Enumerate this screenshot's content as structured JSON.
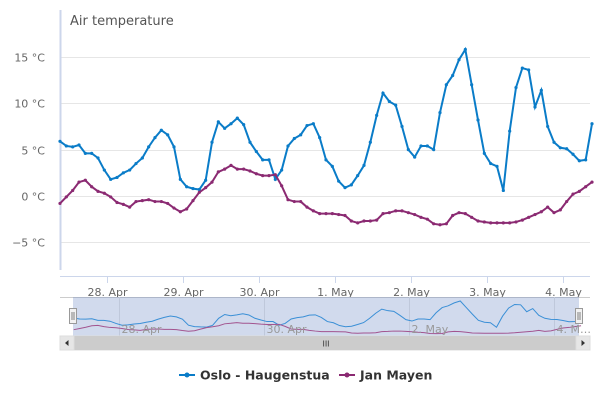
{
  "chart_data": {
    "type": "line",
    "title": "Air temperature",
    "y_unit": "°C",
    "ylim": [
      -5.5,
      19
    ],
    "y_ticks": [
      -5,
      0,
      5,
      10,
      15
    ],
    "y_tick_labels": [
      "−5 °C",
      "0 °C",
      "5 °C",
      "10 °C",
      "15 °C"
    ],
    "x_tick_labels": [
      "28. Apr",
      "29. Apr",
      "30. Apr",
      "1. May",
      "2. May",
      "3. May",
      "4. May"
    ],
    "navigator_tick_labels": [
      "28. Apr",
      "30. Apr",
      "2. May",
      "4. M…"
    ],
    "grid": true,
    "legend_placement": "bottom",
    "point_start": "27 Apr 09:00",
    "point_interval_hours": 2,
    "series": [
      {
        "name": "Oslo - Haugenstua",
        "color": "#0a7cc8",
        "values": [
          5.9,
          5.4,
          5.3,
          5.5,
          4.6,
          4.6,
          4.1,
          2.8,
          1.8,
          2.0,
          2.5,
          2.8,
          3.5,
          4.1,
          5.3,
          6.3,
          7.1,
          6.6,
          5.3,
          1.8,
          1.0,
          0.8,
          0.7,
          1.7,
          5.8,
          8.0,
          7.3,
          7.8,
          8.4,
          7.7,
          5.8,
          4.8,
          3.9,
          3.9,
          1.8,
          2.8,
          5.4,
          6.2,
          6.6,
          7.6,
          7.8,
          6.3,
          3.9,
          3.2,
          1.6,
          0.9,
          1.2,
          2.2,
          3.3,
          5.8,
          8.7,
          11.1,
          10.2,
          9.8,
          7.5,
          5.0,
          4.2,
          5.4,
          5.4,
          5.0,
          9.0,
          12.0,
          13.0,
          14.7,
          15.8,
          12.0,
          8.2,
          4.6,
          3.5,
          3.2,
          0.6,
          7.0,
          11.7,
          13.8,
          13.6,
          9.6,
          11.4,
          7.5,
          5.8,
          5.2,
          5.1,
          4.5,
          3.8,
          3.9,
          7.8
        ]
      },
      {
        "name": "Jan Mayen",
        "color": "#8b2a72",
        "values": [
          -0.8,
          -0.1,
          0.6,
          1.5,
          1.7,
          1.0,
          0.5,
          0.3,
          -0.1,
          -0.7,
          -0.9,
          -1.2,
          -0.6,
          -0.5,
          -0.4,
          -0.6,
          -0.6,
          -0.8,
          -1.3,
          -1.7,
          -1.4,
          -0.5,
          0.4,
          0.9,
          1.5,
          2.6,
          2.9,
          3.3,
          2.9,
          2.9,
          2.7,
          2.4,
          2.2,
          2.2,
          2.3,
          1.1,
          -0.4,
          -0.6,
          -0.6,
          -1.2,
          -1.6,
          -1.9,
          -1.9,
          -1.9,
          -2.0,
          -2.1,
          -2.7,
          -2.9,
          -2.7,
          -2.7,
          -2.6,
          -1.9,
          -1.8,
          -1.6,
          -1.6,
          -1.8,
          -2.0,
          -2.3,
          -2.5,
          -3.0,
          -3.1,
          -3.0,
          -2.1,
          -1.8,
          -1.9,
          -2.3,
          -2.7,
          -2.8,
          -2.9,
          -2.9,
          -2.9,
          -2.9,
          -2.8,
          -2.6,
          -2.3,
          -2.0,
          -1.7,
          -1.2,
          -1.8,
          -1.5,
          -0.6,
          0.2,
          0.5,
          1.0,
          1.5
        ]
      }
    ]
  },
  "scrollbar": {
    "grip_label": "III"
  }
}
